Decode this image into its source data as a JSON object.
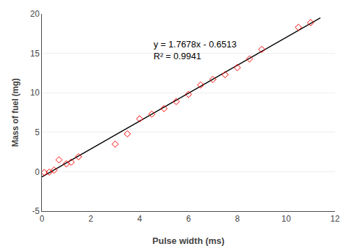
{
  "chart_data": {
    "type": "scatter",
    "xlabel": "Pulse width (ms)",
    "ylabel": "Mass of fuel (mg)",
    "series": [
      {
        "type": "line",
        "color": "#000000",
        "x": [
          0,
          11.4
        ],
        "values": [
          -0.6513,
          19.50162
        ]
      },
      {
        "type": "scatter",
        "color": "#ff0000",
        "marker": "diamond-open",
        "x": [
          0.1,
          0.3,
          0.5,
          0.7,
          1.0,
          1.2,
          1.5,
          3.0,
          3.5,
          4.0,
          4.5,
          5.0,
          5.5,
          6.0,
          6.5,
          7.0,
          7.5,
          8.0,
          8.5,
          9.0,
          10.5,
          11.0
        ],
        "values": [
          -0.1,
          -0.05,
          0.2,
          1.5,
          1.0,
          1.2,
          1.9,
          3.5,
          4.8,
          6.7,
          7.3,
          8.0,
          8.9,
          9.8,
          11.0,
          11.7,
          12.3,
          13.2,
          14.3,
          15.5,
          18.3,
          18.9
        ]
      }
    ],
    "annotations": [
      {
        "text": "y = 1.7678x - 0.6513\nR² = 0.9941",
        "x": 4.5,
        "y": 17.0
      }
    ],
    "xlim": [
      0,
      12
    ],
    "xticks": [
      0,
      2,
      4,
      6,
      8,
      10,
      12
    ],
    "ylim": [
      -5,
      20
    ],
    "yticks": [
      -5,
      0,
      5,
      10,
      15,
      20
    ],
    "grid": "y"
  }
}
